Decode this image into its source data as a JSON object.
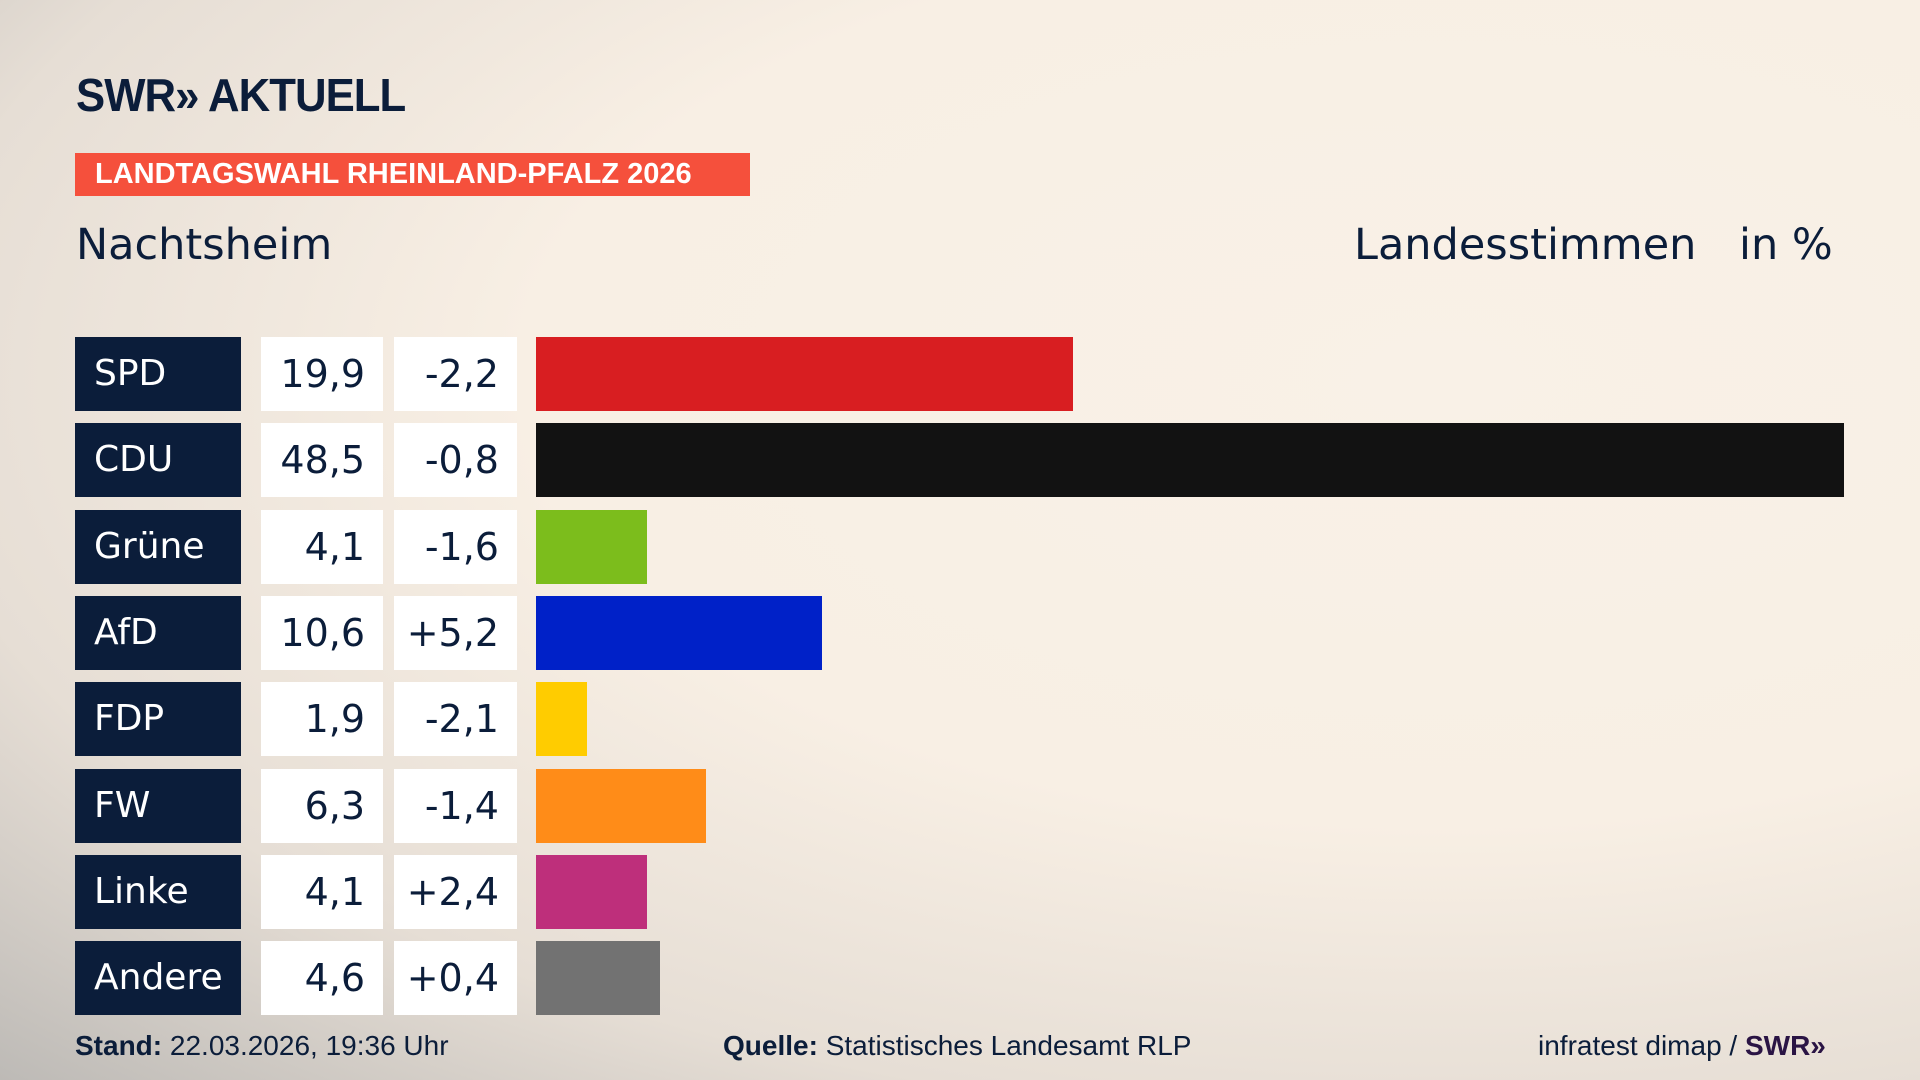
{
  "header": {
    "logo": "SWR» AKTUELL",
    "banner": "LANDTAGSWAHL RHEINLAND-PFALZ 2026",
    "place": "Nachtsheim",
    "kind": "Landesstimmen",
    "unit": "in %"
  },
  "chart_data": {
    "type": "bar",
    "orientation": "horizontal",
    "categories": [
      "SPD",
      "CDU",
      "Grüne",
      "AfD",
      "FDP",
      "FW",
      "Linke",
      "Andere"
    ],
    "values": [
      19.9,
      48.5,
      4.1,
      10.6,
      1.9,
      6.3,
      4.1,
      4.6
    ],
    "value_labels": [
      "19,9",
      "48,5",
      "4,1",
      "10,6",
      "1,9",
      "6,3",
      "4,1",
      "4,6"
    ],
    "diff_labels": [
      "-2,2",
      "-0,8",
      "-1,6",
      "+5,2",
      "-2,1",
      "-1,4",
      "+2,4",
      "+0,4"
    ],
    "diffs": [
      -2.2,
      -0.8,
      -1.6,
      5.2,
      -2.1,
      -1.4,
      2.4,
      0.4
    ],
    "colors": [
      "#d81e21",
      "#121212",
      "#7cbd1c",
      "#0021c8",
      "#ffcc00",
      "#ff8c18",
      "#be2f7b",
      "#727272"
    ],
    "xlim": [
      0,
      48.5
    ]
  },
  "footer": {
    "stand_label": "Stand:",
    "stand": " 22.03.2026, 19:36 Uhr",
    "source_label": "Quelle:",
    "source": " Statistisches Landesamt RLP",
    "credit": "infratest dimap / ",
    "credit_logo": "SWR»"
  }
}
